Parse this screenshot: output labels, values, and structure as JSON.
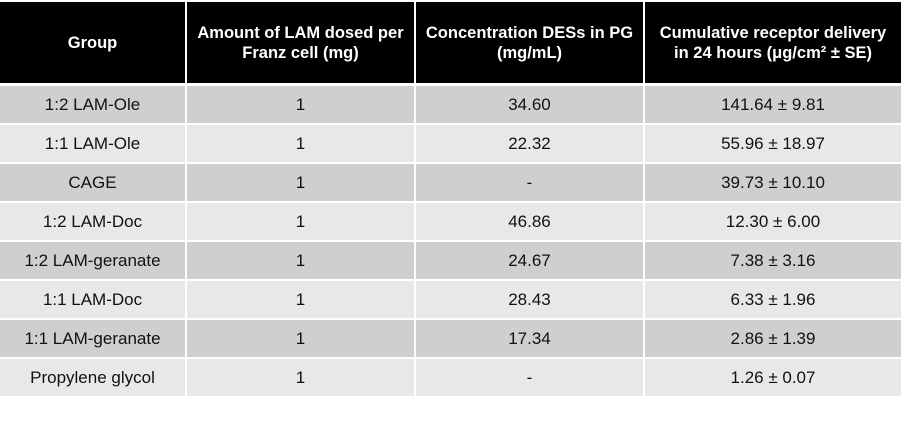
{
  "table": {
    "headers": [
      "Group",
      "Amount of LAM dosed per Franz cell (mg)",
      "Concentration DESs in PG (mg/mL)",
      "Cumulative receptor delivery in 24 hours (μg/cm² ± SE)"
    ],
    "rows": [
      [
        "1:2 LAM-Ole",
        "1",
        "34.60",
        "141.64 ± 9.81"
      ],
      [
        "1:1 LAM-Ole",
        "1",
        "22.32",
        "55.96 ± 18.97"
      ],
      [
        "CAGE",
        "1",
        "-",
        "39.73 ± 10.10"
      ],
      [
        "1:2 LAM-Doc",
        "1",
        "46.86",
        "12.30 ± 6.00"
      ],
      [
        "1:2 LAM-geranate",
        "1",
        "24.67",
        "7.38 ± 3.16"
      ],
      [
        "1:1 LAM-Doc",
        "1",
        "28.43",
        "6.33 ± 1.96"
      ],
      [
        "1:1 LAM-geranate",
        "1",
        "17.34",
        "2.86 ± 1.39"
      ],
      [
        "Propylene glycol",
        "1",
        "-",
        "1.26 ± 0.07"
      ]
    ]
  },
  "colors": {
    "header_bg": "#000000",
    "header_text": "#ffffff",
    "row_dark": "#cfcfcf",
    "row_light": "#e8e8e8"
  }
}
